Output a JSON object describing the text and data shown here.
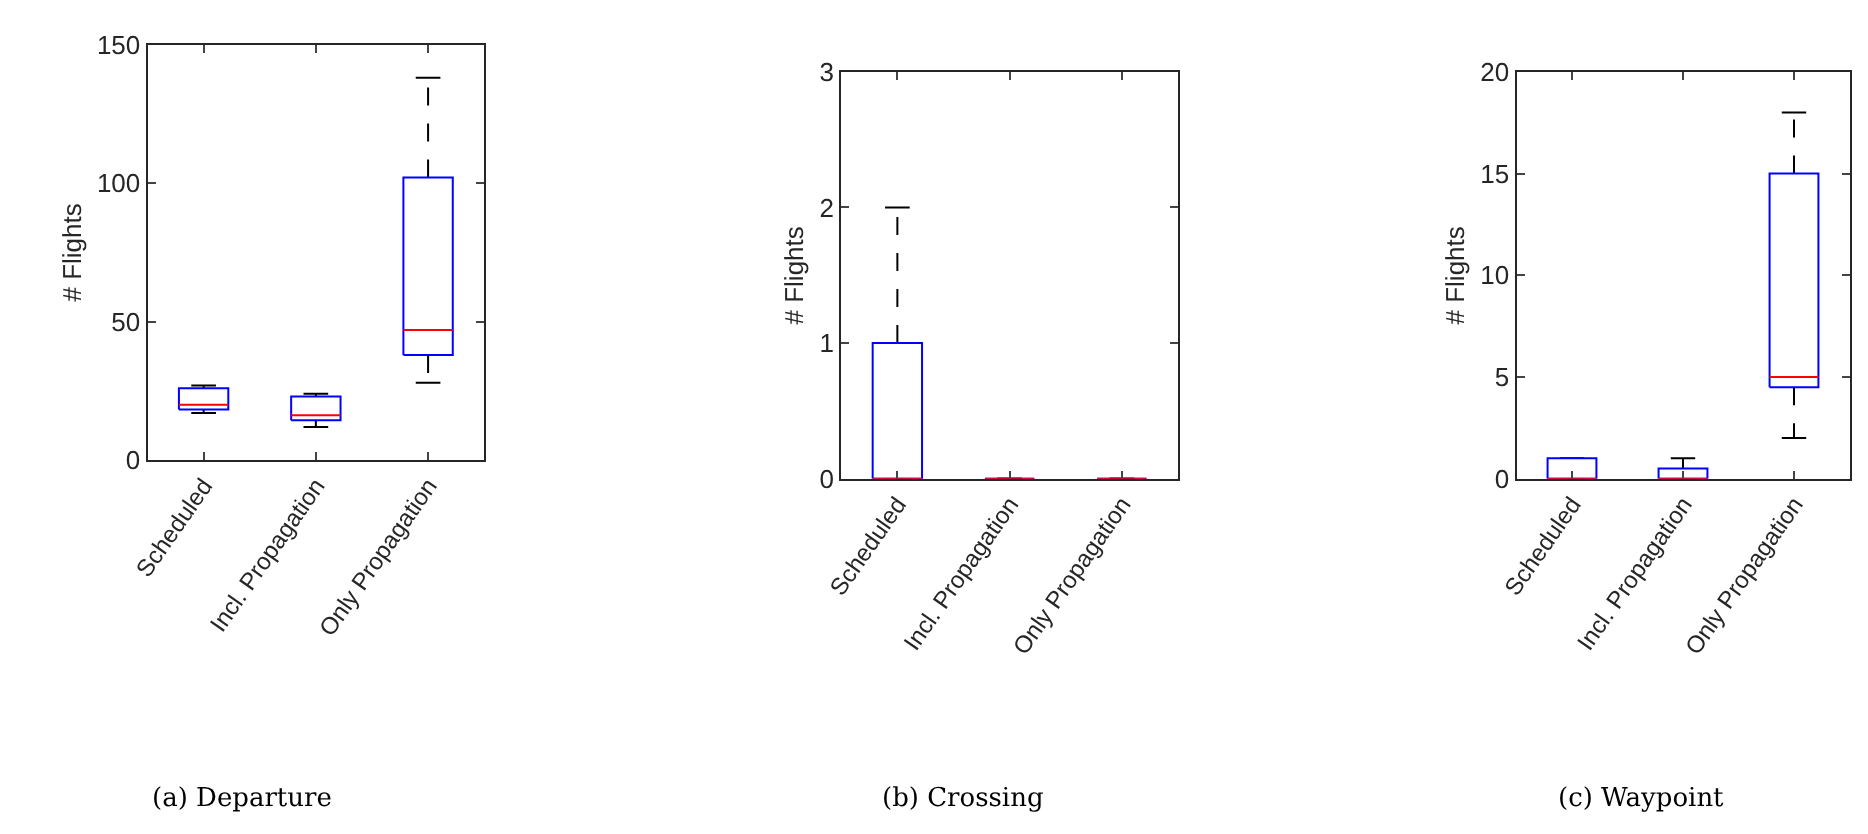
{
  "chart_data": [
    {
      "type": "box",
      "ylabel": "# Flights",
      "categories": [
        "Scheduled",
        "Incl. Propagation",
        "Only Propagation"
      ],
      "ylim": [
        0,
        150
      ],
      "yticks": [
        0,
        50,
        100,
        150
      ],
      "annotations": [
        "(a) Departure"
      ],
      "boxes": [
        {
          "low": 17,
          "q1": 18.3,
          "median": 20,
          "q3": 26,
          "high": 27
        },
        {
          "low": 12,
          "q1": 14.4,
          "median": 16.2,
          "q3": 23,
          "high": 24
        },
        {
          "low": 28,
          "q1": 38,
          "median": 47,
          "q3": 102,
          "high": 138
        }
      ]
    },
    {
      "type": "box",
      "ylabel": "# Flights",
      "categories": [
        "Scheduled",
        "Incl. Propagation",
        "Only Propagation"
      ],
      "ylim": [
        0,
        3
      ],
      "yticks": [
        0,
        1,
        2,
        3
      ],
      "annotations": [
        "(b) Crossing"
      ],
      "boxes": [
        {
          "low": 0,
          "q1": 0,
          "median": 0,
          "q3": 1,
          "high": 2
        },
        {
          "low": 0,
          "q1": 0,
          "median": 0,
          "q3": 0,
          "high": 0
        },
        {
          "low": 0,
          "q1": 0,
          "median": 0,
          "q3": 0,
          "high": 0
        }
      ]
    },
    {
      "type": "box",
      "ylabel": "# Flights",
      "categories": [
        "Scheduled",
        "Incl. Propagation",
        "Only Propagation"
      ],
      "ylim": [
        0,
        20
      ],
      "yticks": [
        0,
        5,
        10,
        15,
        20
      ],
      "annotations": [
        "(c) Waypoint"
      ],
      "boxes": [
        {
          "low": 0,
          "q1": 0,
          "median": 0,
          "q3": 1,
          "high": 1
        },
        {
          "low": 0,
          "q1": 0,
          "median": 0,
          "q3": 0.5,
          "high": 1
        },
        {
          "low": 2,
          "q1": 4.5,
          "median": 5,
          "q3": 15,
          "high": 18
        }
      ]
    }
  ]
}
